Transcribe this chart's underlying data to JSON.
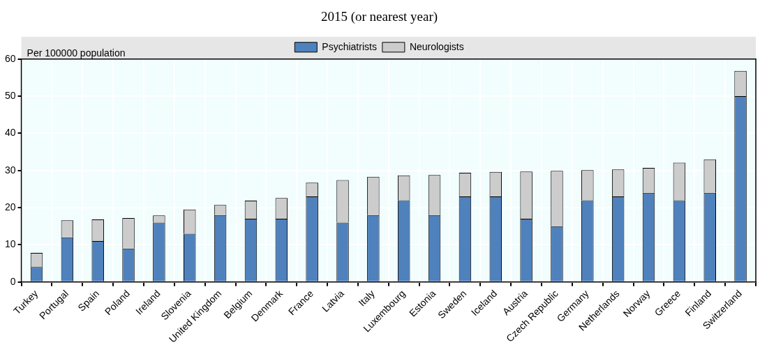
{
  "chart_data": {
    "type": "bar",
    "title": "2015 (or nearest year)",
    "ylabel": "Per 100000 population",
    "stacked": true,
    "grid": true,
    "legend": "top",
    "categories": [
      "Turkey",
      "Portugal",
      "Spain",
      "Poland",
      "Ireland",
      "Slovenia",
      "United Kingdom",
      "Belgium",
      "Denmark",
      "France",
      "Latvia",
      "Italy",
      "Luxembourg",
      "Estonia",
      "Sweden",
      "Iceland",
      "Austria",
      "Czech Republic",
      "Germany",
      "Netherlands",
      "Norway",
      "Greece",
      "Finland",
      "Switzerland"
    ],
    "series": [
      {
        "name": "Psychiatrists",
        "color": "#4f81bd",
        "values": [
          4,
          12,
          11,
          9,
          16,
          13,
          18,
          17,
          17,
          23,
          16,
          18,
          22,
          18,
          23,
          23,
          17,
          15,
          22,
          23,
          24,
          22,
          24,
          50
        ]
      },
      {
        "name": "Neurologists",
        "color": "#cccccc",
        "values": [
          3.8,
          4.6,
          5.8,
          8.2,
          1.9,
          6.5,
          2.7,
          4.9,
          5.6,
          3.7,
          11.4,
          10.3,
          6.7,
          10.8,
          6.4,
          6.6,
          12.7,
          14.9,
          8.1,
          7.3,
          6.7,
          10.1,
          9,
          6.8
        ]
      }
    ],
    "ylim": [
      0,
      60
    ],
    "yticks": [
      0,
      10,
      20,
      30,
      40,
      50,
      60
    ]
  }
}
